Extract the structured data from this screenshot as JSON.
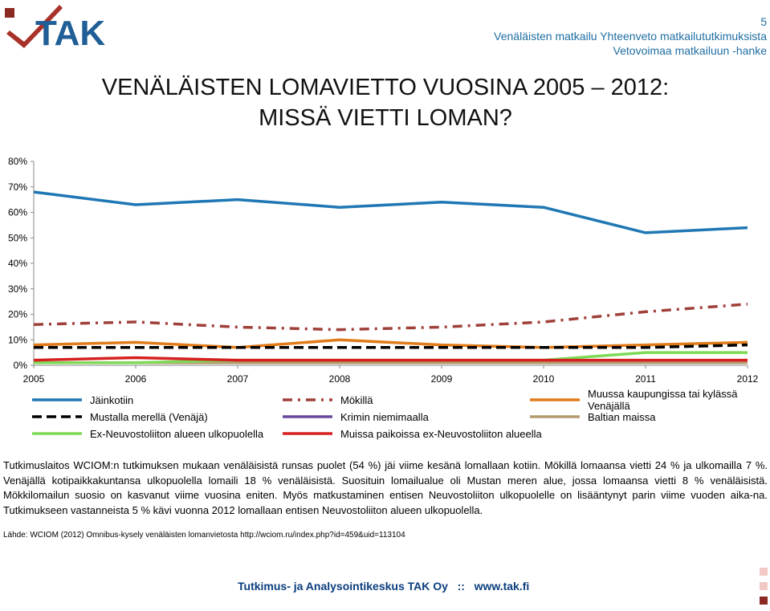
{
  "header": {
    "logo_text": "TAK",
    "page_number": "5",
    "line1": "Venäläisten matkailu Yhteenveto matkailututkimuksista",
    "line2": "Vetovoimaa matkailuun -hanke"
  },
  "title_line1": "VENÄLÄISTEN LOMAVIETTO VUOSINA 2005 – 2012:",
  "title_line2": "MISSÄ VIETTI LOMAN?",
  "chart_data": {
    "type": "line",
    "x": [
      "2005",
      "2006",
      "2007",
      "2008",
      "2009",
      "2010",
      "2011",
      "2012"
    ],
    "ylim": [
      0,
      80
    ],
    "yticks": [
      "0%",
      "10%",
      "20%",
      "30%",
      "40%",
      "50%",
      "60%",
      "70%",
      "80%"
    ],
    "grid": false,
    "legend_position": "bottom",
    "series": [
      {
        "name": "Jäinkotiin",
        "color": "#1f77b4",
        "style": "solid",
        "values": [
          68,
          63,
          65,
          62,
          64,
          62,
          52,
          54
        ]
      },
      {
        "name": "Mökillä",
        "color": "#a0403a",
        "style": "dashdot",
        "values": [
          16,
          17,
          15,
          14,
          15,
          17,
          21,
          24
        ]
      },
      {
        "name": "Muussa kaupungissa tai kylässä Venäjällä",
        "color": "#e07b1a",
        "style": "solid",
        "values": [
          8,
          9,
          7,
          10,
          8,
          7,
          8,
          9
        ]
      },
      {
        "name": "Mustalla merellä (Venäjä)",
        "color": "#000000",
        "style": "dashed",
        "values": [
          7,
          7,
          7,
          7,
          7,
          7,
          7,
          8
        ]
      },
      {
        "name": "Krimin niemimaalla",
        "color": "#6a4a9c",
        "style": "solid",
        "values": [
          1,
          1,
          1,
          1,
          1,
          1,
          1,
          1
        ]
      },
      {
        "name": "Baltian maissa",
        "color": "#b49a6e",
        "style": "solid",
        "values": [
          1,
          1,
          1,
          1,
          1,
          1,
          1,
          1
        ]
      },
      {
        "name": "Ex-Neuvostoliiton alueen ulkopuolella",
        "color": "#7ed957",
        "style": "solid",
        "values": [
          1,
          1,
          2,
          2,
          2,
          2,
          5,
          5
        ]
      },
      {
        "name": "Muissa paikoissa ex-Neuvostoliiton alueella",
        "color": "#d62020",
        "style": "solid",
        "values": [
          2,
          3,
          2,
          2,
          2,
          2,
          2,
          2
        ]
      }
    ]
  },
  "paragraph": "Tutkimuslaitos WCIOM:n tutkimuksen mukaan venäläisistä runsas puolet (54 %) jäi viime kesänä lomallaan kotiin. Mökillä lomaansa vietti 24 % ja ulkomailla 7 %. Venäjällä kotipaikkakuntansa ulkopuolella lomaili 18 % venäläisistä. Suosituin lomailualue oli Mustan meren alue, jossa lomaansa vietti 8 % venäläisistä. Mökkilomailun suosio on kasvanut viime vuosina eniten. Myös matkustaminen entisen Neuvostoliiton ulkopuolelle on lisääntynyt parin viime vuoden aika-na. Tutkimukseen vastanneista 5 % kävi vuonna 2012 lomallaan entisen Neuvostoliiton alueen ulkopuolella.",
  "source": "Lähde: WCIOM (2012) Omnibus-kysely venäläisten lomanvietosta http://wciom.ru/index.php?id=459&uid=113104",
  "footer": "Tutkimus- ja Analysointikeskus TAK Oy   ::   www.tak.fi",
  "colors": {
    "accent_blue": "#1f6ea3",
    "footer_navy": "#0b3e7e",
    "square_pink": "#f2c8c4",
    "square_dark": "#8b2a22"
  }
}
